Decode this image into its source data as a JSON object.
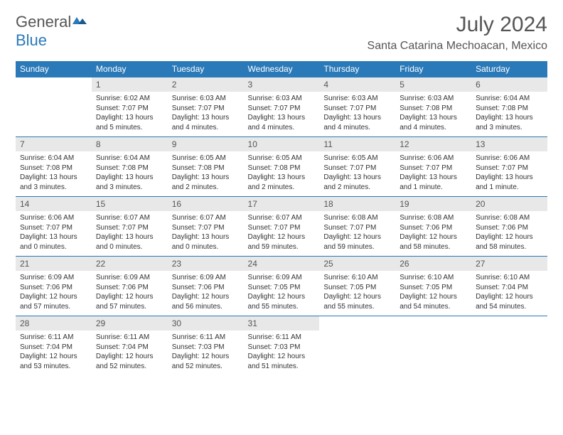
{
  "brand": {
    "word1": "General",
    "word2": "Blue"
  },
  "title": "July 2024",
  "location": "Santa Catarina Mechoacan, Mexico",
  "colors": {
    "header_bg": "#2a79b8",
    "header_fg": "#ffffff",
    "daynum_bg": "#e8e8e8",
    "border": "#2a79b8",
    "text": "#333333"
  },
  "dayNames": [
    "Sunday",
    "Monday",
    "Tuesday",
    "Wednesday",
    "Thursday",
    "Friday",
    "Saturday"
  ],
  "weeks": [
    [
      {
        "n": "",
        "sr": "",
        "ss": "",
        "dl": ""
      },
      {
        "n": "1",
        "sr": "Sunrise: 6:02 AM",
        "ss": "Sunset: 7:07 PM",
        "dl": "Daylight: 13 hours and 5 minutes."
      },
      {
        "n": "2",
        "sr": "Sunrise: 6:03 AM",
        "ss": "Sunset: 7:07 PM",
        "dl": "Daylight: 13 hours and 4 minutes."
      },
      {
        "n": "3",
        "sr": "Sunrise: 6:03 AM",
        "ss": "Sunset: 7:07 PM",
        "dl": "Daylight: 13 hours and 4 minutes."
      },
      {
        "n": "4",
        "sr": "Sunrise: 6:03 AM",
        "ss": "Sunset: 7:07 PM",
        "dl": "Daylight: 13 hours and 4 minutes."
      },
      {
        "n": "5",
        "sr": "Sunrise: 6:03 AM",
        "ss": "Sunset: 7:08 PM",
        "dl": "Daylight: 13 hours and 4 minutes."
      },
      {
        "n": "6",
        "sr": "Sunrise: 6:04 AM",
        "ss": "Sunset: 7:08 PM",
        "dl": "Daylight: 13 hours and 3 minutes."
      }
    ],
    [
      {
        "n": "7",
        "sr": "Sunrise: 6:04 AM",
        "ss": "Sunset: 7:08 PM",
        "dl": "Daylight: 13 hours and 3 minutes."
      },
      {
        "n": "8",
        "sr": "Sunrise: 6:04 AM",
        "ss": "Sunset: 7:08 PM",
        "dl": "Daylight: 13 hours and 3 minutes."
      },
      {
        "n": "9",
        "sr": "Sunrise: 6:05 AM",
        "ss": "Sunset: 7:08 PM",
        "dl": "Daylight: 13 hours and 2 minutes."
      },
      {
        "n": "10",
        "sr": "Sunrise: 6:05 AM",
        "ss": "Sunset: 7:08 PM",
        "dl": "Daylight: 13 hours and 2 minutes."
      },
      {
        "n": "11",
        "sr": "Sunrise: 6:05 AM",
        "ss": "Sunset: 7:07 PM",
        "dl": "Daylight: 13 hours and 2 minutes."
      },
      {
        "n": "12",
        "sr": "Sunrise: 6:06 AM",
        "ss": "Sunset: 7:07 PM",
        "dl": "Daylight: 13 hours and 1 minute."
      },
      {
        "n": "13",
        "sr": "Sunrise: 6:06 AM",
        "ss": "Sunset: 7:07 PM",
        "dl": "Daylight: 13 hours and 1 minute."
      }
    ],
    [
      {
        "n": "14",
        "sr": "Sunrise: 6:06 AM",
        "ss": "Sunset: 7:07 PM",
        "dl": "Daylight: 13 hours and 0 minutes."
      },
      {
        "n": "15",
        "sr": "Sunrise: 6:07 AM",
        "ss": "Sunset: 7:07 PM",
        "dl": "Daylight: 13 hours and 0 minutes."
      },
      {
        "n": "16",
        "sr": "Sunrise: 6:07 AM",
        "ss": "Sunset: 7:07 PM",
        "dl": "Daylight: 13 hours and 0 minutes."
      },
      {
        "n": "17",
        "sr": "Sunrise: 6:07 AM",
        "ss": "Sunset: 7:07 PM",
        "dl": "Daylight: 12 hours and 59 minutes."
      },
      {
        "n": "18",
        "sr": "Sunrise: 6:08 AM",
        "ss": "Sunset: 7:07 PM",
        "dl": "Daylight: 12 hours and 59 minutes."
      },
      {
        "n": "19",
        "sr": "Sunrise: 6:08 AM",
        "ss": "Sunset: 7:06 PM",
        "dl": "Daylight: 12 hours and 58 minutes."
      },
      {
        "n": "20",
        "sr": "Sunrise: 6:08 AM",
        "ss": "Sunset: 7:06 PM",
        "dl": "Daylight: 12 hours and 58 minutes."
      }
    ],
    [
      {
        "n": "21",
        "sr": "Sunrise: 6:09 AM",
        "ss": "Sunset: 7:06 PM",
        "dl": "Daylight: 12 hours and 57 minutes."
      },
      {
        "n": "22",
        "sr": "Sunrise: 6:09 AM",
        "ss": "Sunset: 7:06 PM",
        "dl": "Daylight: 12 hours and 57 minutes."
      },
      {
        "n": "23",
        "sr": "Sunrise: 6:09 AM",
        "ss": "Sunset: 7:06 PM",
        "dl": "Daylight: 12 hours and 56 minutes."
      },
      {
        "n": "24",
        "sr": "Sunrise: 6:09 AM",
        "ss": "Sunset: 7:05 PM",
        "dl": "Daylight: 12 hours and 55 minutes."
      },
      {
        "n": "25",
        "sr": "Sunrise: 6:10 AM",
        "ss": "Sunset: 7:05 PM",
        "dl": "Daylight: 12 hours and 55 minutes."
      },
      {
        "n": "26",
        "sr": "Sunrise: 6:10 AM",
        "ss": "Sunset: 7:05 PM",
        "dl": "Daylight: 12 hours and 54 minutes."
      },
      {
        "n": "27",
        "sr": "Sunrise: 6:10 AM",
        "ss": "Sunset: 7:04 PM",
        "dl": "Daylight: 12 hours and 54 minutes."
      }
    ],
    [
      {
        "n": "28",
        "sr": "Sunrise: 6:11 AM",
        "ss": "Sunset: 7:04 PM",
        "dl": "Daylight: 12 hours and 53 minutes."
      },
      {
        "n": "29",
        "sr": "Sunrise: 6:11 AM",
        "ss": "Sunset: 7:04 PM",
        "dl": "Daylight: 12 hours and 52 minutes."
      },
      {
        "n": "30",
        "sr": "Sunrise: 6:11 AM",
        "ss": "Sunset: 7:03 PM",
        "dl": "Daylight: 12 hours and 52 minutes."
      },
      {
        "n": "31",
        "sr": "Sunrise: 6:11 AM",
        "ss": "Sunset: 7:03 PM",
        "dl": "Daylight: 12 hours and 51 minutes."
      },
      {
        "n": "",
        "sr": "",
        "ss": "",
        "dl": ""
      },
      {
        "n": "",
        "sr": "",
        "ss": "",
        "dl": ""
      },
      {
        "n": "",
        "sr": "",
        "ss": "",
        "dl": ""
      }
    ]
  ]
}
